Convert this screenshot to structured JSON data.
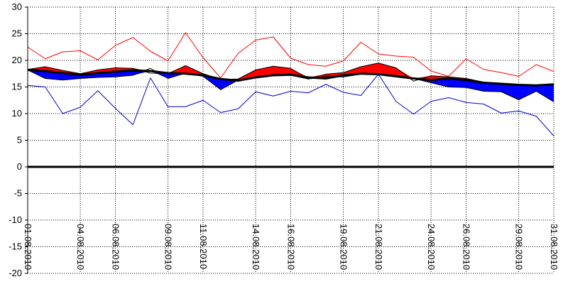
{
  "chart_data": {
    "type": "line",
    "title": "",
    "xlabel": "",
    "ylabel": "",
    "ylim": [
      -20,
      30
    ],
    "yticks": [
      30,
      25,
      20,
      15,
      10,
      5,
      0,
      -5,
      -10,
      -15,
      -20
    ],
    "grid": true,
    "x": [
      "01.08.2010",
      "02.08.2010",
      "03.08.2010",
      "04.08.2010",
      "05.08.2010",
      "06.08.2010",
      "07.08.2010",
      "08.08.2010",
      "09.08.2010",
      "10.08.2010",
      "11.08.2010",
      "12.08.2010",
      "13.08.2010",
      "14.08.2010",
      "15.08.2010",
      "16.08.2010",
      "17.08.2010",
      "18.08.2010",
      "19.08.2010",
      "20.08.2010",
      "21.08.2010",
      "22.08.2010",
      "23.08.2010",
      "24.08.2010",
      "25.08.2010",
      "26.08.2010",
      "27.08.2010",
      "28.08.2010",
      "29.08.2010",
      "30.08.2010",
      "31.08.2010"
    ],
    "xtick_labels": [
      "01.08.2010",
      "04.08.2010",
      "06.08.2010",
      "09.08.2010",
      "11.08.2010",
      "14.08.2010",
      "16.08.2010",
      "19.08.2010",
      "21.08.2010",
      "24.08.2010",
      "26.08.2010",
      "29.08.2010",
      "31.08.2010"
    ],
    "series": [
      {
        "values": [
          22.5,
          20.3,
          21.6,
          21.8,
          20.1,
          22.8,
          24.3,
          21.7,
          19.9,
          25.2,
          20.5,
          16.7,
          21.3,
          23.8,
          24.4,
          20.4,
          19.2,
          18.9,
          19.9,
          23.4,
          21.2,
          20.8,
          20.6,
          18.0,
          17.0,
          20.3,
          18.3,
          17.7,
          17.0,
          19.2,
          17.9
        ],
        "color": "#ff0000"
      },
      {
        "values": [
          18.2,
          18.0,
          17.6,
          17.3,
          17.6,
          17.9,
          18.1,
          18.0,
          17.6,
          17.5,
          17.2,
          16.5,
          16.2,
          16.8,
          17.2,
          17.3,
          16.8,
          16.6,
          17.2,
          17.5,
          17.4,
          17.0,
          16.6,
          16.3,
          16.6,
          16.3,
          15.8,
          15.6,
          15.4,
          15.3,
          15.5
        ],
        "color": "#000000"
      },
      {
        "values": [
          18.3,
          18.8,
          18.1,
          17.5,
          18.2,
          18.6,
          18.5,
          17.6,
          17.5,
          19.0,
          17.5,
          16.4,
          16.5,
          18.2,
          18.9,
          18.5,
          16.5,
          17.4,
          17.7,
          18.8,
          19.5,
          18.6,
          16.1,
          17.1,
          16.9,
          16.6,
          15.9,
          15.5,
          15.4,
          15.3,
          15.6
        ],
        "color": "#000000"
      },
      {
        "values": [
          18.2,
          16.6,
          16.3,
          16.6,
          16.8,
          16.9,
          17.2,
          18.5,
          16.6,
          17.6,
          17.0,
          14.5,
          16.3,
          16.9,
          17.1,
          17.2,
          16.5,
          17.0,
          16.9,
          17.4,
          17.4,
          17.2,
          16.6,
          15.8,
          15.0,
          14.9,
          14.2,
          14.1,
          12.6,
          14.2,
          12.2
        ],
        "color": "#000000"
      },
      {
        "values": [
          15.3,
          15.0,
          10.0,
          11.2,
          14.3,
          11.0,
          7.9,
          16.7,
          11.3,
          11.3,
          12.5,
          10.2,
          10.9,
          14.1,
          13.3,
          14.2,
          13.9,
          15.5,
          14.0,
          13.4,
          17.4,
          12.3,
          9.9,
          12.3,
          13.0,
          12.1,
          11.8,
          10.1,
          10.5,
          9.5,
          5.8
        ],
        "color": "#0000cc"
      }
    ],
    "fill_above_color": "#ff0000",
    "fill_below_color": "#0000ff"
  }
}
